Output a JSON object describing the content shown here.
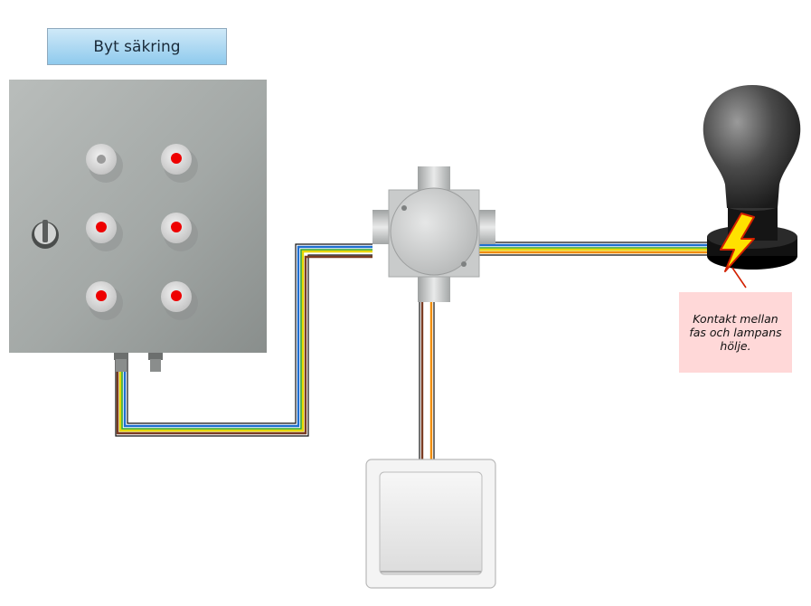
{
  "controls": {
    "replace_fuse_label": "Byt säkring"
  },
  "fault_note": {
    "text": "Kontakt mellan fas och lampans hölje."
  },
  "components": {
    "fuse_box": {
      "fuses": [
        "intact",
        "blown",
        "blown",
        "blown",
        "blown",
        "blown"
      ]
    },
    "junction_box": {},
    "wall_switch": {},
    "lamp": {
      "fault": "short-circuit"
    }
  },
  "colors": {
    "phase_brown": "#7a3b22",
    "switched_orange": "#f08c00",
    "neutral_blue": "#1f6fd0",
    "earth_yellow": "#e8d800",
    "earth_green": "#2fa52f",
    "fuse_indicator_red": "#ee0000",
    "fault_note_bg": "#ffd8d8",
    "button_bg": "#9dd3f2"
  }
}
